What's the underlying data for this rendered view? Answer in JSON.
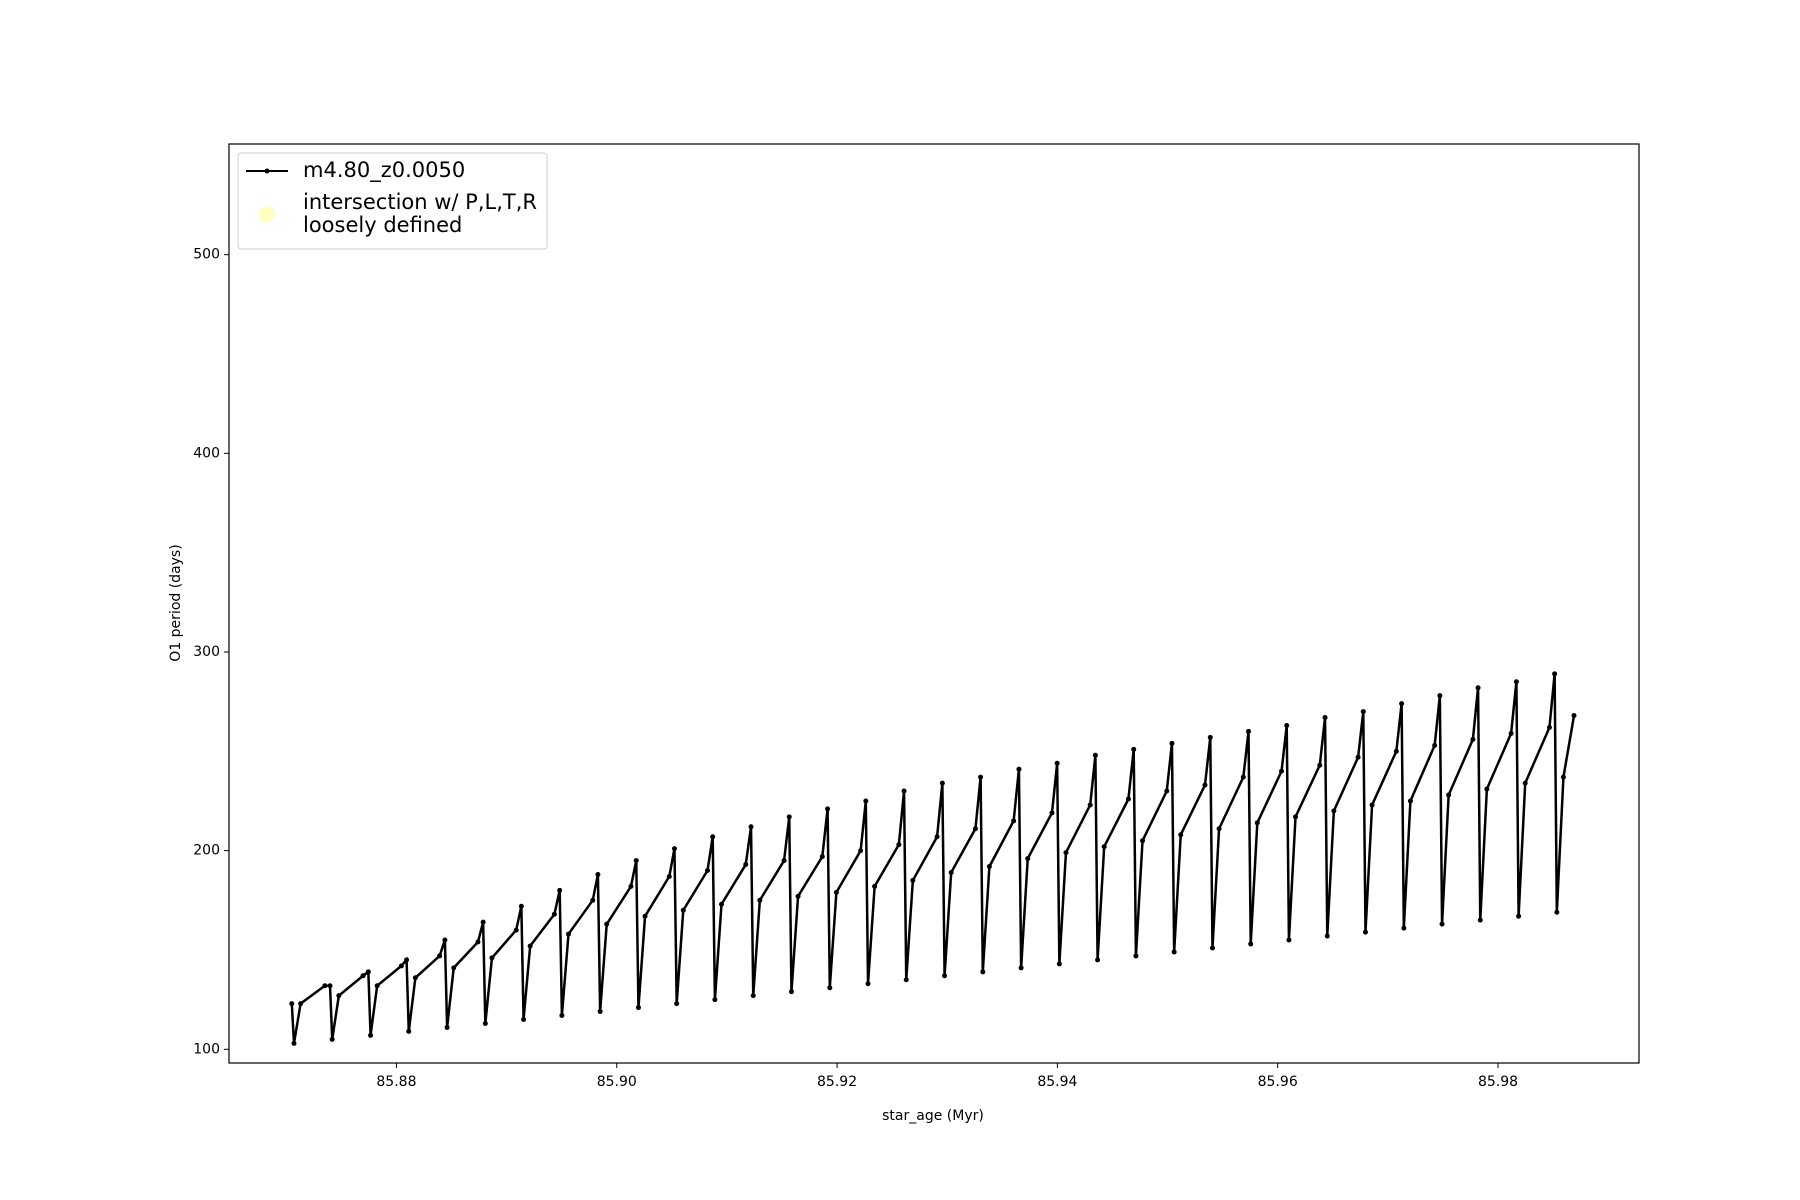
{
  "chart_data": {
    "type": "line",
    "xlabel": "star_age (Myr)",
    "ylabel": "O1 period (days)",
    "xlim": [
      85.8648,
      85.9928
    ],
    "ylim": [
      93.1,
      555.7
    ],
    "xticks": [
      85.88,
      {
        "value": 85.9,
        "label": "85.90"
      },
      85.92,
      85.94,
      85.96,
      85.98
    ],
    "yticks": [
      100,
      200,
      300,
      400,
      500
    ],
    "grid": false,
    "legend": "upper left",
    "series": [
      {
        "name": "m4.80_z0.0050",
        "color": "#000000",
        "marker": "o",
        "x": [
          85.8705,
          85.8707,
          85.8713,
          85.8735,
          85.87397,
          85.87417,
          85.87477,
          85.87697,
          85.87745,
          85.87765,
          85.87825,
          85.88045,
          85.88092,
          85.88112,
          85.88172,
          85.88392,
          85.8844,
          85.8846,
          85.8852,
          85.8874,
          85.88787,
          85.88807,
          85.88867,
          85.89087,
          85.89134,
          85.89154,
          85.89214,
          85.89434,
          85.89482,
          85.89502,
          85.89562,
          85.89782,
          85.89829,
          85.89849,
          85.89909,
          85.90129,
          85.90177,
          85.90197,
          85.90257,
          85.90477,
          85.90524,
          85.90544,
          85.90604,
          85.90824,
          85.90871,
          85.90891,
          85.90951,
          85.91171,
          85.91219,
          85.91239,
          85.91299,
          85.91519,
          85.91566,
          85.91586,
          85.91646,
          85.91866,
          85.91914,
          85.91934,
          85.91994,
          85.92214,
          85.92261,
          85.92281,
          85.92341,
          85.92561,
          85.92608,
          85.92628,
          85.92688,
          85.92908,
          85.92956,
          85.92976,
          85.93036,
          85.93256,
          85.93303,
          85.93323,
          85.93383,
          85.93603,
          85.93651,
          85.93671,
          85.93731,
          85.93951,
          85.93998,
          85.94018,
          85.94078,
          85.94298,
          85.94345,
          85.94365,
          85.94425,
          85.94645,
          85.94693,
          85.94713,
          85.94773,
          85.94993,
          85.9504,
          85.9506,
          85.9512,
          85.9534,
          85.95388,
          85.95408,
          85.95468,
          85.95688,
          85.95735,
          85.95755,
          85.95815,
          85.96035,
          85.96082,
          85.96102,
          85.96162,
          85.96382,
          85.9643,
          85.9645,
          85.9651,
          85.9673,
          85.96777,
          85.96797,
          85.96857,
          85.97077,
          85.97125,
          85.97145,
          85.97205,
          85.97425,
          85.97472,
          85.97492,
          85.97552,
          85.97772,
          85.97819,
          85.97839,
          85.97899,
          85.98119,
          85.98167,
          85.98187,
          85.98247,
          85.98467,
          85.98514,
          85.98534,
          85.98594,
          85.9869
        ],
        "values": [
          123,
          103,
          123,
          132,
          132,
          105,
          127,
          137,
          139,
          107,
          132,
          142,
          145,
          109,
          136,
          147,
          155,
          111,
          141,
          154,
          164,
          113,
          146,
          160,
          172,
          115,
          152,
          168,
          180,
          117,
          158,
          175,
          188,
          119,
          163,
          182,
          195,
          121,
          167,
          187,
          201,
          123,
          170,
          190,
          207,
          125,
          173,
          193,
          212,
          127,
          175,
          195,
          217,
          129,
          177,
          197,
          221,
          131,
          179,
          200,
          225,
          133,
          182,
          203,
          230,
          135,
          185,
          207,
          234,
          137,
          189,
          211,
          237,
          139,
          192,
          215,
          241,
          141,
          196,
          219,
          244,
          143,
          199,
          223,
          248,
          145,
          202,
          226,
          251,
          147,
          205,
          230,
          254,
          149,
          208,
          233,
          257,
          151,
          211,
          237,
          260,
          153,
          214,
          240,
          263,
          155,
          217,
          243,
          267,
          157,
          220,
          247,
          270,
          159,
          223,
          250,
          274,
          161,
          225,
          253,
          278,
          163,
          228,
          256,
          282,
          165,
          231,
          259,
          285,
          167,
          234,
          262,
          289,
          169,
          237,
          268
        ]
      },
      {
        "name": "intersection w/ P,L,T,R\nloosely defined",
        "color": "#ffffc0",
        "type": "scatter",
        "x": [],
        "values": []
      }
    ]
  }
}
